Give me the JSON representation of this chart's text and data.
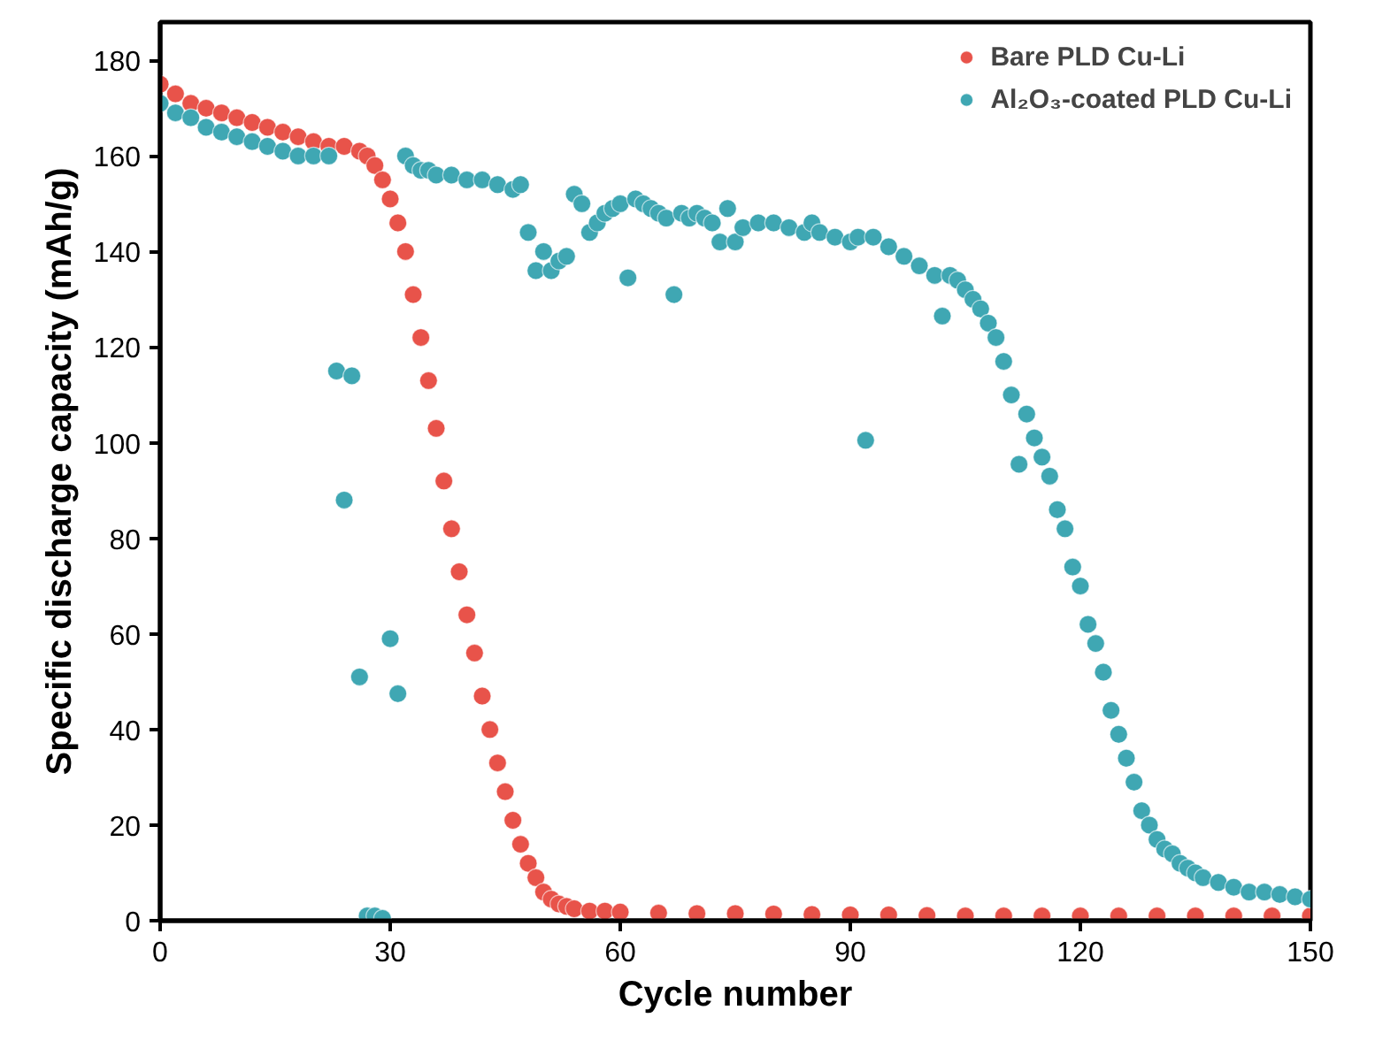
{
  "chart_data": {
    "type": "scatter",
    "xlabel": "Cycle number",
    "ylabel": "Specific discharge capacity (mAh/g)",
    "xlim": [
      0,
      150
    ],
    "ylim": [
      0,
      188
    ],
    "xticks": [
      0,
      30,
      60,
      90,
      120,
      150
    ],
    "yticks": [
      0,
      20,
      40,
      60,
      80,
      100,
      120,
      140,
      160,
      180
    ],
    "grid": false,
    "legend": "top right",
    "marker": "circle",
    "series": [
      {
        "name": "Bare PLD Cu-Li",
        "color": "#e8534a",
        "x": [
          0,
          2,
          4,
          6,
          8,
          10,
          12,
          14,
          16,
          18,
          20,
          22,
          24,
          26,
          27,
          28,
          29,
          30,
          31,
          32,
          33,
          34,
          35,
          36,
          37,
          38,
          39,
          40,
          41,
          42,
          43,
          44,
          45,
          46,
          47,
          48,
          49,
          50,
          51,
          52,
          53,
          54,
          56,
          58,
          60,
          65,
          70,
          75,
          80,
          85,
          90,
          95,
          100,
          105,
          110,
          115,
          120,
          125,
          130,
          135,
          140,
          145,
          150
        ],
        "values": [
          175,
          173,
          171,
          170,
          169,
          168,
          167,
          166,
          165,
          164,
          163,
          162,
          162,
          161,
          160,
          158,
          155,
          151,
          146,
          140,
          131,
          122,
          113,
          103,
          92,
          82,
          73,
          64,
          56,
          47,
          40,
          33,
          27,
          21,
          16,
          12,
          9,
          6,
          4.5,
          3.5,
          3,
          2.5,
          2,
          2,
          1.8,
          1.6,
          1.5,
          1.5,
          1.4,
          1.3,
          1.2,
          1.2,
          1.1,
          1,
          1,
          1,
          1,
          1,
          1,
          1,
          1,
          1,
          1
        ]
      },
      {
        "name": "Al₂O₃-coated PLD Cu-Li",
        "color": "#3fa7b3",
        "x": [
          0,
          2,
          4,
          6,
          8,
          10,
          12,
          14,
          16,
          18,
          20,
          22,
          23,
          24,
          25,
          26,
          27,
          28,
          29,
          30,
          31,
          32,
          33,
          34,
          35,
          36,
          38,
          40,
          42,
          44,
          46,
          47,
          48,
          49,
          50,
          51,
          52,
          53,
          54,
          55,
          56,
          57,
          58,
          59,
          60,
          61,
          62,
          63,
          64,
          65,
          66,
          67,
          68,
          69,
          70,
          71,
          72,
          73,
          74,
          75,
          76,
          78,
          80,
          82,
          84,
          85,
          86,
          88,
          90,
          91,
          92,
          93,
          95,
          97,
          99,
          101,
          102,
          103,
          104,
          105,
          106,
          107,
          108,
          109,
          110,
          111,
          112,
          113,
          114,
          115,
          116,
          117,
          118,
          119,
          120,
          121,
          122,
          123,
          124,
          125,
          126,
          127,
          128,
          129,
          130,
          131,
          132,
          133,
          134,
          135,
          136,
          138,
          140,
          142,
          144,
          146,
          148,
          150
        ],
        "values": [
          171,
          169,
          168,
          166,
          165,
          164,
          163,
          162,
          161,
          160,
          160,
          160,
          115,
          88,
          114,
          51,
          1,
          1,
          0.5,
          59,
          47.5,
          160,
          158,
          157,
          157,
          156,
          156,
          155,
          155,
          154,
          153,
          154,
          144,
          136,
          140,
          136,
          138,
          139,
          152,
          150,
          144,
          146,
          148,
          149,
          150,
          134.5,
          151,
          150,
          149,
          148,
          147,
          131,
          148,
          147,
          148,
          147,
          146,
          142,
          149,
          142,
          145,
          146,
          146,
          145,
          144,
          146,
          144,
          143,
          142,
          143,
          100.5,
          143,
          141,
          139,
          137,
          135,
          126.5,
          135,
          134,
          132,
          130,
          128,
          125,
          122,
          117,
          110,
          95.5,
          106,
          101,
          97,
          93,
          86,
          82,
          74,
          70,
          62,
          58,
          52,
          44,
          39,
          34,
          29,
          23,
          20,
          17,
          15,
          14,
          12,
          11,
          10,
          9,
          8,
          7,
          6,
          6,
          5.5,
          5,
          4.5
        ]
      }
    ]
  }
}
